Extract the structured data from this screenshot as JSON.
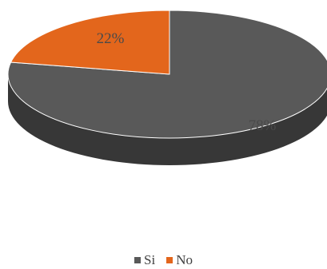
{
  "chart_data": {
    "type": "pie",
    "style": "3d",
    "title": "",
    "categories": [
      "Si",
      "No"
    ],
    "values": [
      78,
      22
    ],
    "labels": [
      "78%",
      "22%"
    ],
    "colors": [
      "#595959",
      "#e3661c"
    ],
    "legend_position": "bottom"
  }
}
